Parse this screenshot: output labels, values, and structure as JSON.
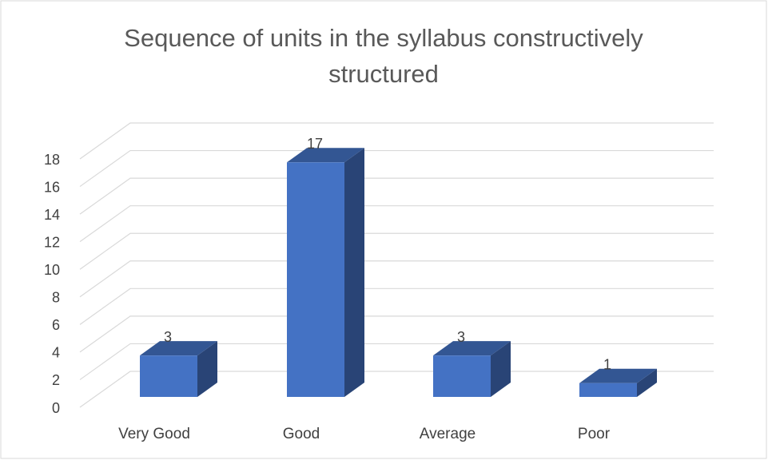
{
  "chart_data": {
    "type": "bar3d",
    "title": "Sequence of units in the syllabus constructively structured",
    "categories": [
      "Very Good",
      "Good",
      "Average",
      "Poor"
    ],
    "values": [
      3,
      17,
      3,
      1
    ],
    "color": "#4472c4",
    "ylim": [
      0,
      18
    ],
    "yticks": [
      0,
      2,
      4,
      6,
      8,
      10,
      12,
      14,
      16,
      18
    ],
    "grid": true
  }
}
